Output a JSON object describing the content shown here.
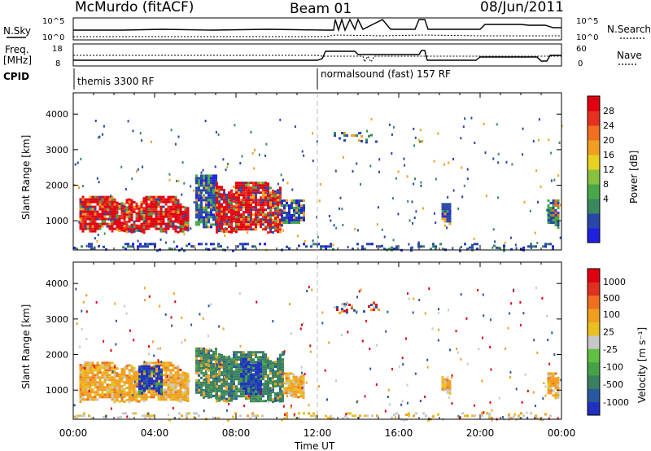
{
  "header": {
    "station": "McMurdo (fitACF)",
    "beam": "Beam 01",
    "date": "08/Jun/2011"
  },
  "top_panels": {
    "nsky_label": "N.Sky",
    "nsky_ticks": [
      "10^5",
      "10^0"
    ],
    "nsearch_label": "N.Search",
    "nsearch_ticks": [
      "10^5",
      "10^0"
    ],
    "freq_label": "Freq.",
    "freq_unit": "[MHz]",
    "freq_ticks": [
      "18",
      "8"
    ],
    "nave_label": "Nave",
    "nave_ticks": [
      "60",
      "0"
    ],
    "cpid_label": "CPID",
    "cpid_segments": [
      {
        "name": "themis 3300 RF",
        "start_hour": 0,
        "end_hour": 12
      },
      {
        "name": "normalsound (fast) 157 RF",
        "start_hour": 12,
        "end_hour": 24
      }
    ]
  },
  "x_axis": {
    "label": "Time UT",
    "ticks": [
      "00:00",
      "04:00",
      "08:00",
      "12:00",
      "16:00",
      "20:00",
      "00:00"
    ]
  },
  "chart_data": [
    {
      "type": "heatmap",
      "panel": "power",
      "ylabel": "Slant Range [km]",
      "yticks": [
        "1000",
        "2000",
        "3000",
        "4000"
      ],
      "ylim": [
        180,
        4600
      ],
      "xlim_hours": [
        0,
        24
      ],
      "colorbar_label": "Power [dB]",
      "colorbar_ticks": [
        "28",
        "24",
        "20",
        "16",
        "12",
        "8",
        "4"
      ],
      "colorbar_colors": [
        "#2020e0",
        "#2848a8",
        "#3a8860",
        "#48a848",
        "#88c040",
        "#e8d020",
        "#f0a020",
        "#f07020",
        "#e83020",
        "#e00010"
      ],
      "regions": [
        {
          "t0": 0.3,
          "t1": 5.6,
          "r0": 700,
          "r1": 1700,
          "level": "high"
        },
        {
          "t0": 6.0,
          "t1": 7.0,
          "r0": 800,
          "r1": 2300,
          "level": "low"
        },
        {
          "t0": 7.0,
          "t1": 10.2,
          "r0": 700,
          "r1": 2100,
          "level": "high"
        },
        {
          "t0": 10.2,
          "t1": 11.3,
          "r0": 900,
          "r1": 1600,
          "level": "low"
        },
        {
          "t0": 12.8,
          "t1": 15.0,
          "r0": 3200,
          "r1": 3500,
          "level": "sparse"
        },
        {
          "t0": 17.0,
          "t1": 17.2,
          "r0": 3200,
          "r1": 3400,
          "level": "sparse"
        },
        {
          "t0": 18.1,
          "t1": 18.5,
          "r0": 900,
          "r1": 1500,
          "level": "low"
        },
        {
          "t0": 23.3,
          "t1": 23.9,
          "r0": 800,
          "r1": 1600,
          "level": "mid"
        },
        {
          "t0": 0.0,
          "t1": 24.0,
          "r0": 180,
          "r1": 380,
          "level": "ground"
        }
      ]
    },
    {
      "type": "heatmap",
      "panel": "velocity",
      "ylabel": "Slant Range [km]",
      "yticks": [
        "1000",
        "2000",
        "3000",
        "4000"
      ],
      "ylim": [
        180,
        4600
      ],
      "xlim_hours": [
        0,
        24
      ],
      "colorbar_label": "Velocity [m s⁻¹]",
      "colorbar_ticks": [
        "1000",
        "500",
        "100",
        "25",
        "-25",
        "-100",
        "-500",
        "-1000"
      ],
      "colorbar_colors": [
        "#2030c0",
        "#2858a0",
        "#3a8060",
        "#48a048",
        "#60c040",
        "#c8c8c8",
        "#e8c020",
        "#f0a020",
        "#f07020",
        "#e03020",
        "#e00010"
      ],
      "regions": [
        {
          "t0": 0.3,
          "t1": 5.6,
          "r0": 700,
          "r1": 1800,
          "level": "orange"
        },
        {
          "t0": 3.2,
          "t1": 4.4,
          "r0": 900,
          "r1": 1700,
          "level": "blue"
        },
        {
          "t0": 6.0,
          "t1": 7.0,
          "r0": 800,
          "r1": 2200,
          "level": "green"
        },
        {
          "t0": 7.0,
          "t1": 10.3,
          "r0": 700,
          "r1": 2100,
          "level": "green"
        },
        {
          "t0": 8.2,
          "t1": 9.2,
          "r0": 900,
          "r1": 1900,
          "level": "blue"
        },
        {
          "t0": 10.3,
          "t1": 11.3,
          "r0": 800,
          "r1": 1500,
          "level": "orange"
        },
        {
          "t0": 12.8,
          "t1": 15.0,
          "r0": 3200,
          "r1": 3500,
          "level": "sparse"
        },
        {
          "t0": 18.1,
          "t1": 18.5,
          "r0": 900,
          "r1": 1400,
          "level": "orange"
        },
        {
          "t0": 23.3,
          "t1": 23.9,
          "r0": 800,
          "r1": 1500,
          "level": "orange"
        },
        {
          "t0": 0.0,
          "t1": 24.0,
          "r0": 180,
          "r1": 380,
          "level": "ground"
        }
      ]
    }
  ]
}
